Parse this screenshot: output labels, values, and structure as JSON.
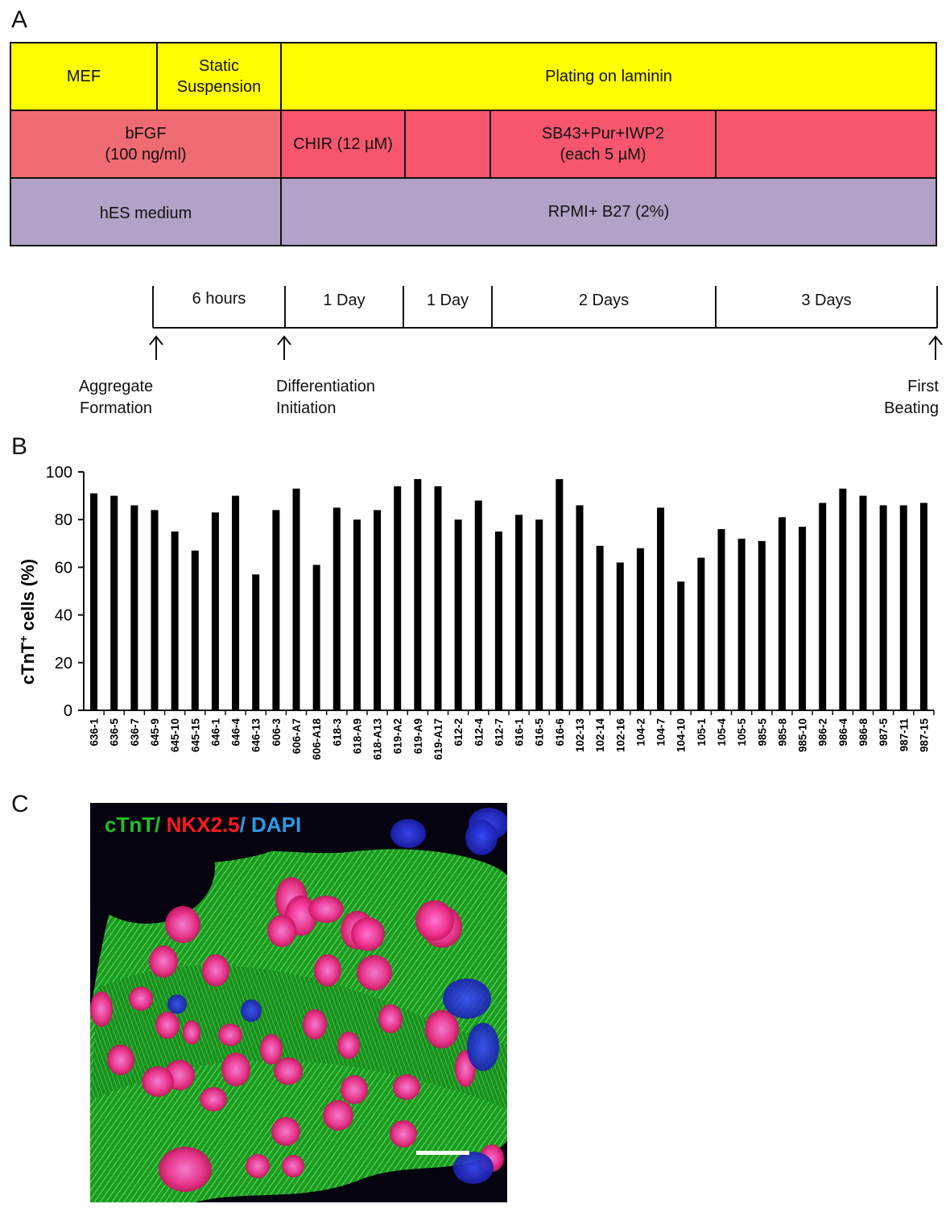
{
  "panels": {
    "a": "A",
    "b": "B",
    "c": "C"
  },
  "protocol": {
    "row1": [
      "MEF",
      "Static\nSuspension",
      "Plating on laminin"
    ],
    "row2": [
      "bFGF\n(100 ng/ml)",
      "CHIR (12 µM)",
      "",
      "SB43+Pur+IWP2\n(each 5 µM)",
      ""
    ],
    "row3": [
      "hES medium",
      "RPMI+ B27 (2%)"
    ]
  },
  "timeline": {
    "segments": [
      "6 hours",
      "1 Day",
      "1 Day",
      "2 Days",
      "3 Days"
    ],
    "events": [
      "Aggregate\nFormation",
      "Differentiation\nInitiation",
      "First\nBeating"
    ]
  },
  "colors": {
    "yellow": "#ffff00",
    "red_left": "#ef6b72",
    "red": "#f7566e",
    "purple": "#b2a2c7",
    "bar": "#000000",
    "ctnt": "#22c02a",
    "nkx": "#ff1a1a",
    "dapi": "#2a9be8"
  },
  "chart_data": {
    "type": "bar",
    "ylabel": "cTnT",
    "ylabel_sup": "+",
    "ylabel_suffix": " cells (%)",
    "ylim": [
      0,
      100
    ],
    "yticks": [
      0,
      20,
      40,
      60,
      80,
      100
    ],
    "categories": [
      "636-1",
      "636-5",
      "636-7",
      "645-9",
      "645-10",
      "645-15",
      "646-1",
      "646-4",
      "646-13",
      "606-3",
      "606-A7",
      "606-A18",
      "618-3",
      "618-A9",
      "618-A13",
      "619-A2",
      "619-A9",
      "619-A17",
      "612-2",
      "612-4",
      "612-7",
      "616-1",
      "616-5",
      "616-6",
      "102-13",
      "102-14",
      "102-16",
      "104-2",
      "104-7",
      "104-10",
      "105-1",
      "105-4",
      "105-5",
      "985-5",
      "985-8",
      "985-10",
      "986-2",
      "986-4",
      "986-8",
      "987-5",
      "987-11",
      "987-15"
    ],
    "values": [
      91,
      90,
      86,
      84,
      75,
      67,
      83,
      90,
      57,
      84,
      93,
      61,
      85,
      80,
      84,
      94,
      97,
      94,
      80,
      88,
      75,
      82,
      80,
      97,
      86,
      69,
      62,
      68,
      85,
      54,
      64,
      76,
      72,
      71,
      81,
      77,
      87,
      93,
      90,
      86,
      86,
      87
    ],
    "grid": false
  },
  "micrograph": {
    "legend": {
      "ctnt": "cTnT/",
      "nkx": " NKX2.5",
      "dapi": "/ DAPI"
    },
    "scale_bar": true
  }
}
